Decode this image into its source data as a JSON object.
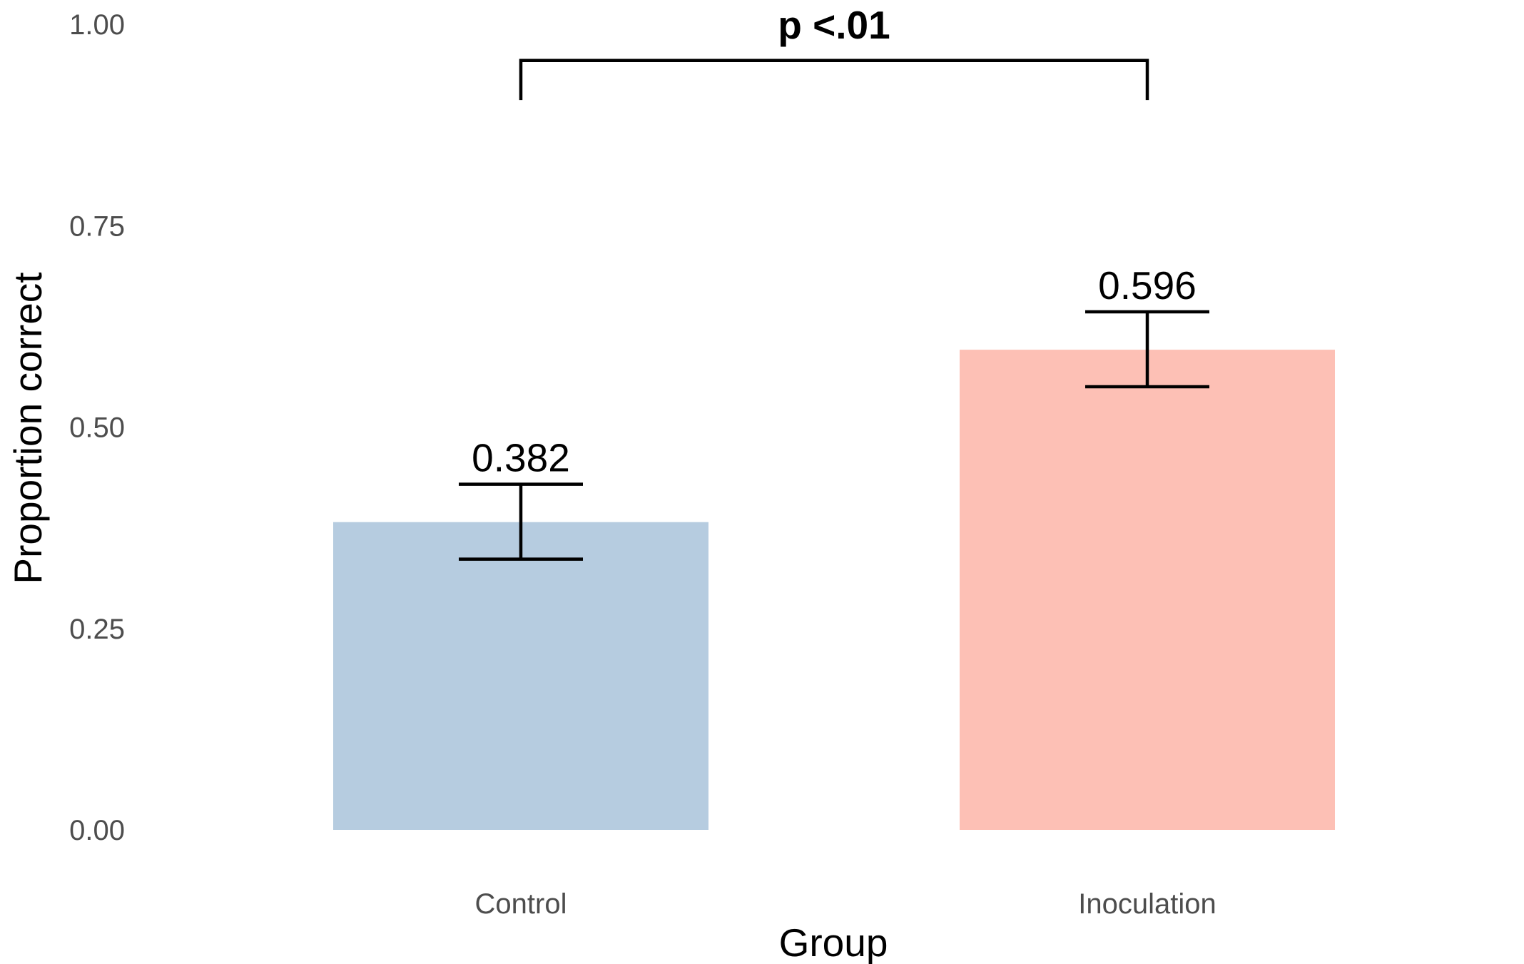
{
  "chart_data": {
    "type": "bar",
    "categories": [
      "Control",
      "Inoculation"
    ],
    "values": [
      0.382,
      0.596
    ],
    "value_labels": [
      "0.382",
      "0.596"
    ],
    "error_bars": [
      {
        "lower": 0.336,
        "upper": 0.429
      },
      {
        "lower": 0.55,
        "upper": 0.643
      }
    ],
    "colors": [
      "#b6cce0",
      "#fdc0b5"
    ],
    "xlabel": "Group",
    "ylabel": "Proportion correct",
    "ylim": [
      0,
      1
    ],
    "yticks": [
      0,
      0.25,
      0.5,
      0.75,
      1.0
    ],
    "ytick_labels": [
      "0.00",
      "0.25",
      "0.50",
      "0.75",
      "1.00"
    ],
    "grid": false,
    "significance": {
      "label": "p <.01",
      "between": [
        "Control",
        "Inoculation"
      ],
      "bracket_y": 0.955,
      "bracket_drop_y": 0.906
    }
  }
}
